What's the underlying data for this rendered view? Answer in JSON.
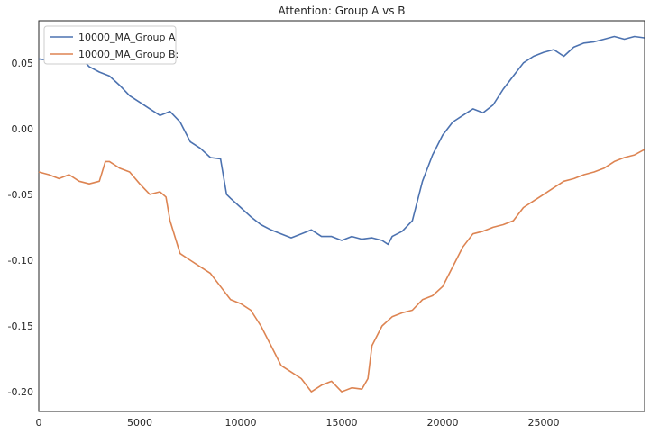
{
  "chart_data": {
    "type": "line",
    "title": "Attention: Group A vs B",
    "xlabel": "",
    "ylabel": "",
    "xlim": [
      0,
      30000
    ],
    "ylim": [
      -0.215,
      0.082
    ],
    "xticks": [
      0,
      5000,
      10000,
      15000,
      20000,
      25000
    ],
    "xtick_labels": [
      "0",
      "5000",
      "10000",
      "15000",
      "20000",
      "25000"
    ],
    "yticks": [
      0.05,
      0.0,
      -0.05,
      -0.1,
      -0.15,
      -0.2
    ],
    "ytick_labels": [
      "0.05",
      "0.00",
      "-0.05",
      "-0.10",
      "-0.15",
      "-0.20"
    ],
    "grid": false,
    "legend": "upper-left",
    "series": [
      {
        "name": "10000_MA_Group A",
        "color": "#4c72b0",
        "x": [
          0,
          500,
          1000,
          1500,
          2000,
          2500,
          3000,
          3500,
          4000,
          4500,
          5000,
          5500,
          6000,
          6500,
          7000,
          7500,
          8000,
          8500,
          9000,
          9300,
          9500,
          10000,
          10500,
          11000,
          11500,
          12000,
          12500,
          13000,
          13500,
          14000,
          14500,
          15000,
          15500,
          16000,
          16500,
          17000,
          17300,
          17500,
          18000,
          18500,
          19000,
          19500,
          20000,
          20500,
          21000,
          21500,
          22000,
          22500,
          23000,
          23500,
          24000,
          24500,
          25000,
          25500,
          26000,
          26500,
          27000,
          27500,
          28000,
          28500,
          29000,
          29500,
          29980
        ],
        "values": [
          0.053,
          0.052,
          0.051,
          0.052,
          0.055,
          0.047,
          0.043,
          0.04,
          0.033,
          0.025,
          0.02,
          0.015,
          0.01,
          0.013,
          0.005,
          -0.01,
          -0.015,
          -0.022,
          -0.023,
          -0.05,
          -0.053,
          -0.06,
          -0.067,
          -0.073,
          -0.077,
          -0.08,
          -0.083,
          -0.08,
          -0.077,
          -0.082,
          -0.082,
          -0.085,
          -0.082,
          -0.084,
          -0.083,
          -0.085,
          -0.088,
          -0.082,
          -0.078,
          -0.07,
          -0.04,
          -0.02,
          -0.005,
          0.005,
          0.01,
          0.015,
          0.012,
          0.018,
          0.03,
          0.04,
          0.05,
          0.055,
          0.058,
          0.06,
          0.055,
          0.062,
          0.065,
          0.066,
          0.068,
          0.07,
          0.068,
          0.07,
          0.069
        ]
      },
      {
        "name": "10000_MA_Group B:",
        "color": "#dd8452",
        "x": [
          0,
          500,
          1000,
          1500,
          2000,
          2500,
          3000,
          3300,
          3500,
          4000,
          4500,
          5000,
          5500,
          6000,
          6300,
          6500,
          6800,
          7000,
          7500,
          8000,
          8500,
          9000,
          9500,
          10000,
          10500,
          11000,
          11500,
          12000,
          12500,
          13000,
          13500,
          14000,
          14500,
          15000,
          15500,
          16000,
          16300,
          16500,
          17000,
          17500,
          18000,
          18500,
          19000,
          19500,
          20000,
          20500,
          21000,
          21500,
          22000,
          22500,
          23000,
          23500,
          24000,
          24500,
          25000,
          25500,
          26000,
          26500,
          27000,
          27500,
          28000,
          28500,
          29000,
          29500,
          29980
        ],
        "values": [
          -0.033,
          -0.035,
          -0.038,
          -0.035,
          -0.04,
          -0.042,
          -0.04,
          -0.025,
          -0.025,
          -0.03,
          -0.033,
          -0.042,
          -0.05,
          -0.048,
          -0.052,
          -0.07,
          -0.085,
          -0.095,
          -0.1,
          -0.105,
          -0.11,
          -0.12,
          -0.13,
          -0.133,
          -0.138,
          -0.15,
          -0.165,
          -0.18,
          -0.185,
          -0.19,
          -0.2,
          -0.195,
          -0.192,
          -0.2,
          -0.197,
          -0.198,
          -0.19,
          -0.165,
          -0.15,
          -0.143,
          -0.14,
          -0.138,
          -0.13,
          -0.127,
          -0.12,
          -0.105,
          -0.09,
          -0.08,
          -0.078,
          -0.075,
          -0.073,
          -0.07,
          -0.06,
          -0.055,
          -0.05,
          -0.045,
          -0.04,
          -0.038,
          -0.035,
          -0.033,
          -0.03,
          -0.025,
          -0.022,
          -0.02,
          -0.016
        ]
      }
    ]
  }
}
